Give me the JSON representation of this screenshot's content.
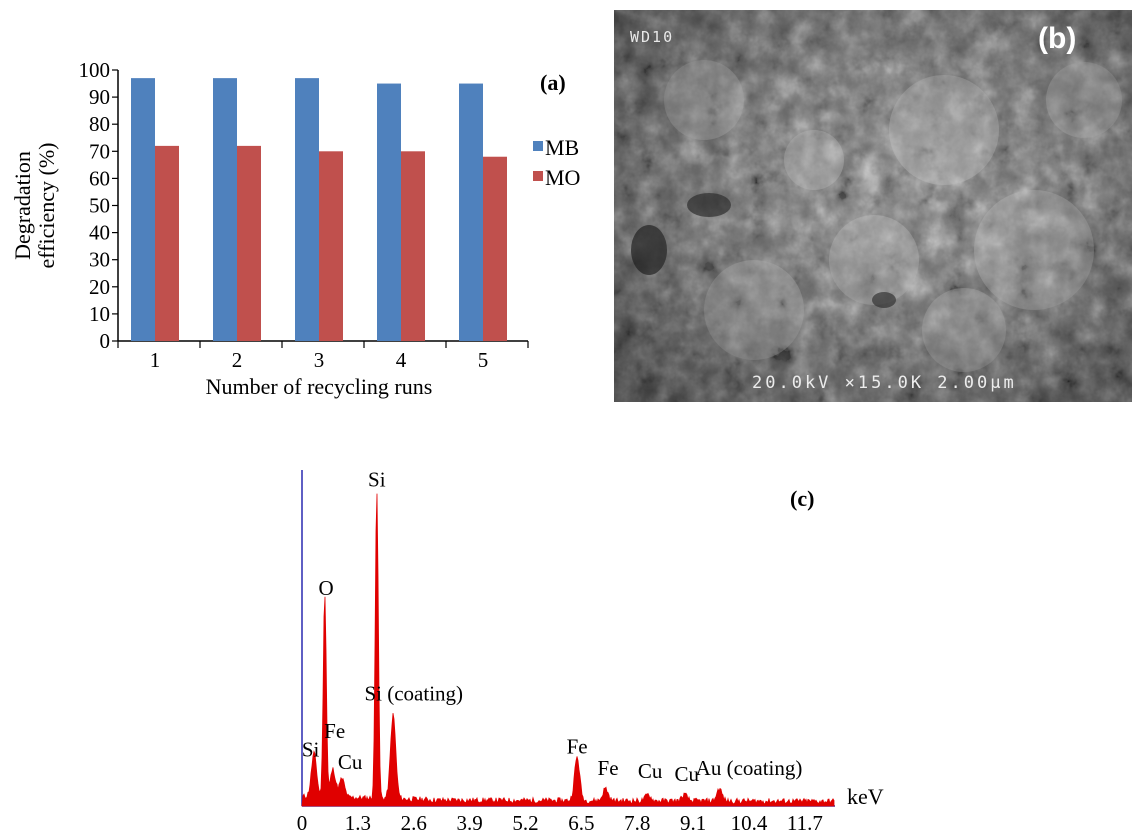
{
  "panels": [
    {
      "id": "a",
      "label": "(a)",
      "chart_data": {
        "type": "bar",
        "title": "",
        "categories": [
          "1",
          "2",
          "3",
          "4",
          "5"
        ],
        "series": [
          {
            "name": "MB",
            "color": "#4f81bd",
            "values": [
              97,
              97,
              97,
              95,
              95
            ]
          },
          {
            "name": "MO",
            "color": "#c0504d",
            "values": [
              72,
              72,
              70,
              70,
              68
            ]
          }
        ],
        "xlabel": "Number of recycling runs",
        "ylabel_lines": [
          "Degradation",
          "efficiency (%)"
        ],
        "ylim": [
          0,
          100
        ],
        "yticks": [
          0,
          10,
          20,
          30,
          40,
          50,
          60,
          70,
          80,
          90,
          100
        ],
        "grid": false,
        "legend_position": "right"
      }
    },
    {
      "id": "b",
      "label": "(b)",
      "image": {
        "kind": "SEM micrograph",
        "overlay_top_left": "WD10",
        "overlay_bottom": "20.0kV ×15.0K 2.00μm"
      }
    },
    {
      "id": "c",
      "label": "(c)",
      "chart_data": {
        "type": "line",
        "title": "",
        "xlabel": "keV",
        "xticks": [
          "0",
          "1.3",
          "2.6",
          "3.9",
          "5.2",
          "6.5",
          "7.8",
          "9.1",
          "10.4",
          "11.7"
        ],
        "xlim": [
          0,
          12.4
        ],
        "series_color": "#e00000",
        "peaks": [
          {
            "x": 0.28,
            "y": 14
          },
          {
            "x": 0.53,
            "y": 66
          },
          {
            "x": 0.72,
            "y": 9
          },
          {
            "x": 0.93,
            "y": 6
          },
          {
            "x": 1.74,
            "y": 100
          },
          {
            "x": 2.12,
            "y": 27
          },
          {
            "x": 6.4,
            "y": 14
          },
          {
            "x": 7.06,
            "y": 4
          },
          {
            "x": 8.05,
            "y": 2
          },
          {
            "x": 8.9,
            "y": 2
          },
          {
            "x": 9.71,
            "y": 4
          }
        ],
        "annotations": [
          {
            "text": "Si",
            "x": 0.2,
            "y": 16
          },
          {
            "text": "Fe",
            "x": 0.76,
            "y": 22
          },
          {
            "text": "Cu",
            "x": 1.12,
            "y": 12
          },
          {
            "text": "O",
            "x": 0.56,
            "y": 68
          },
          {
            "text": "Si",
            "x": 1.74,
            "y": 103
          },
          {
            "text": "Si (coating)",
            "x": 2.6,
            "y": 34
          },
          {
            "text": "Fe",
            "x": 6.4,
            "y": 17
          },
          {
            "text": "Fe",
            "x": 7.12,
            "y": 10
          },
          {
            "text": "Cu",
            "x": 8.1,
            "y": 9
          },
          {
            "text": "Cu",
            "x": 8.95,
            "y": 8
          },
          {
            "text": "Au (coating)",
            "x": 10.4,
            "y": 10
          }
        ]
      }
    }
  ]
}
